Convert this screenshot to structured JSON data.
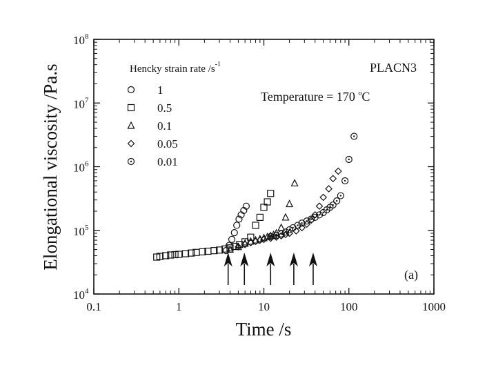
{
  "chart_data": {
    "type": "scatter",
    "xlabel": "Time /s",
    "ylabel": "Elongational viscosity /Pa.s",
    "xscale": "log",
    "yscale": "log",
    "xlim": [
      0.1,
      1000
    ],
    "ylim": [
      10000,
      100000000
    ],
    "x_tick_labels": [
      "0.1",
      "1",
      "10",
      "100",
      "1000"
    ],
    "y_tick_labels": [
      {
        "base": "10",
        "exp": "4"
      },
      {
        "base": "10",
        "exp": "5"
      },
      {
        "base": "10",
        "exp": "6"
      },
      {
        "base": "10",
        "exp": "7"
      },
      {
        "base": "10",
        "exp": "8"
      }
    ],
    "legend": {
      "title": "Hencky strain rate /s",
      "title_exp": "-1",
      "placement": "top-left"
    },
    "annotations": {
      "sample": "PLACN3",
      "temperature_text": "Temperature = 170 ",
      "temperature_sup": "o",
      "temperature_unit": "C",
      "panel": "(a)"
    },
    "arrow_times": [
      3.8,
      5.9,
      12,
      22.5,
      38
    ],
    "series": [
      {
        "name": "1",
        "marker": "circle",
        "x": [
          3.6,
          3.9,
          4.2,
          4.5,
          4.8,
          5.1,
          5.4,
          5.8,
          6.2
        ],
        "y": [
          48000,
          58000,
          72000,
          92000,
          120000,
          150000,
          175000,
          205000,
          240000
        ]
      },
      {
        "name": "0.5",
        "marker": "square",
        "x": [
          0.55,
          0.6,
          0.7,
          0.8,
          0.9,
          1.0,
          1.2,
          1.4,
          1.6,
          1.9,
          2.2,
          2.6,
          3.0,
          3.5,
          4.0,
          4.6,
          5.2,
          6.0,
          7.0,
          8.0,
          9.0,
          10.0,
          11.0,
          12.0
        ],
        "y": [
          38000,
          39000,
          40000,
          41000,
          41500,
          42000,
          43000,
          44000,
          45000,
          46000,
          47000,
          48000,
          49000,
          51000,
          53000,
          56000,
          60000,
          66000,
          78000,
          120000,
          160000,
          230000,
          280000,
          380000
        ]
      },
      {
        "name": "0.1",
        "marker": "triangle",
        "x": [
          4.0,
          5.0,
          6.0,
          7.0,
          8.0,
          9.0,
          10.0,
          11.0,
          12.0,
          13.0,
          14.0,
          16.0,
          18.0,
          20.0,
          23.0
        ],
        "y": [
          50000,
          55000,
          62000,
          67000,
          70000,
          73000,
          76000,
          79000,
          82000,
          85000,
          90000,
          110000,
          160000,
          260000,
          550000
        ]
      },
      {
        "name": "0.05",
        "marker": "diamond",
        "x": [
          5.0,
          6.0,
          7.0,
          8.0,
          9.0,
          10.0,
          12.0,
          14.0,
          16.0,
          18.0,
          20.0,
          24.0,
          28.0,
          32.0,
          36.0,
          40.0,
          45.0,
          50.0,
          58.0,
          65.0,
          75.0
        ],
        "y": [
          55000,
          60000,
          64000,
          67000,
          70000,
          72000,
          75000,
          78000,
          82000,
          86000,
          90000,
          98000,
          110000,
          125000,
          145000,
          175000,
          240000,
          330000,
          450000,
          650000,
          850000
        ]
      },
      {
        "name": "0.01",
        "marker": "dotted-circle",
        "x": [
          12.0,
          14.0,
          16.0,
          18.0,
          20.0,
          22.0,
          25.0,
          28.0,
          32.0,
          36.0,
          40.0,
          45.0,
          50.0,
          55.0,
          60.0,
          65.0,
          72.0,
          80.0,
          90.0,
          100.0,
          115.0
        ],
        "y": [
          80000,
          83000,
          88000,
          94000,
          102000,
          110000,
          120000,
          130000,
          140000,
          150000,
          160000,
          175000,
          190000,
          210000,
          230000,
          250000,
          290000,
          350000,
          600000,
          1300000,
          3000000
        ]
      }
    ]
  }
}
